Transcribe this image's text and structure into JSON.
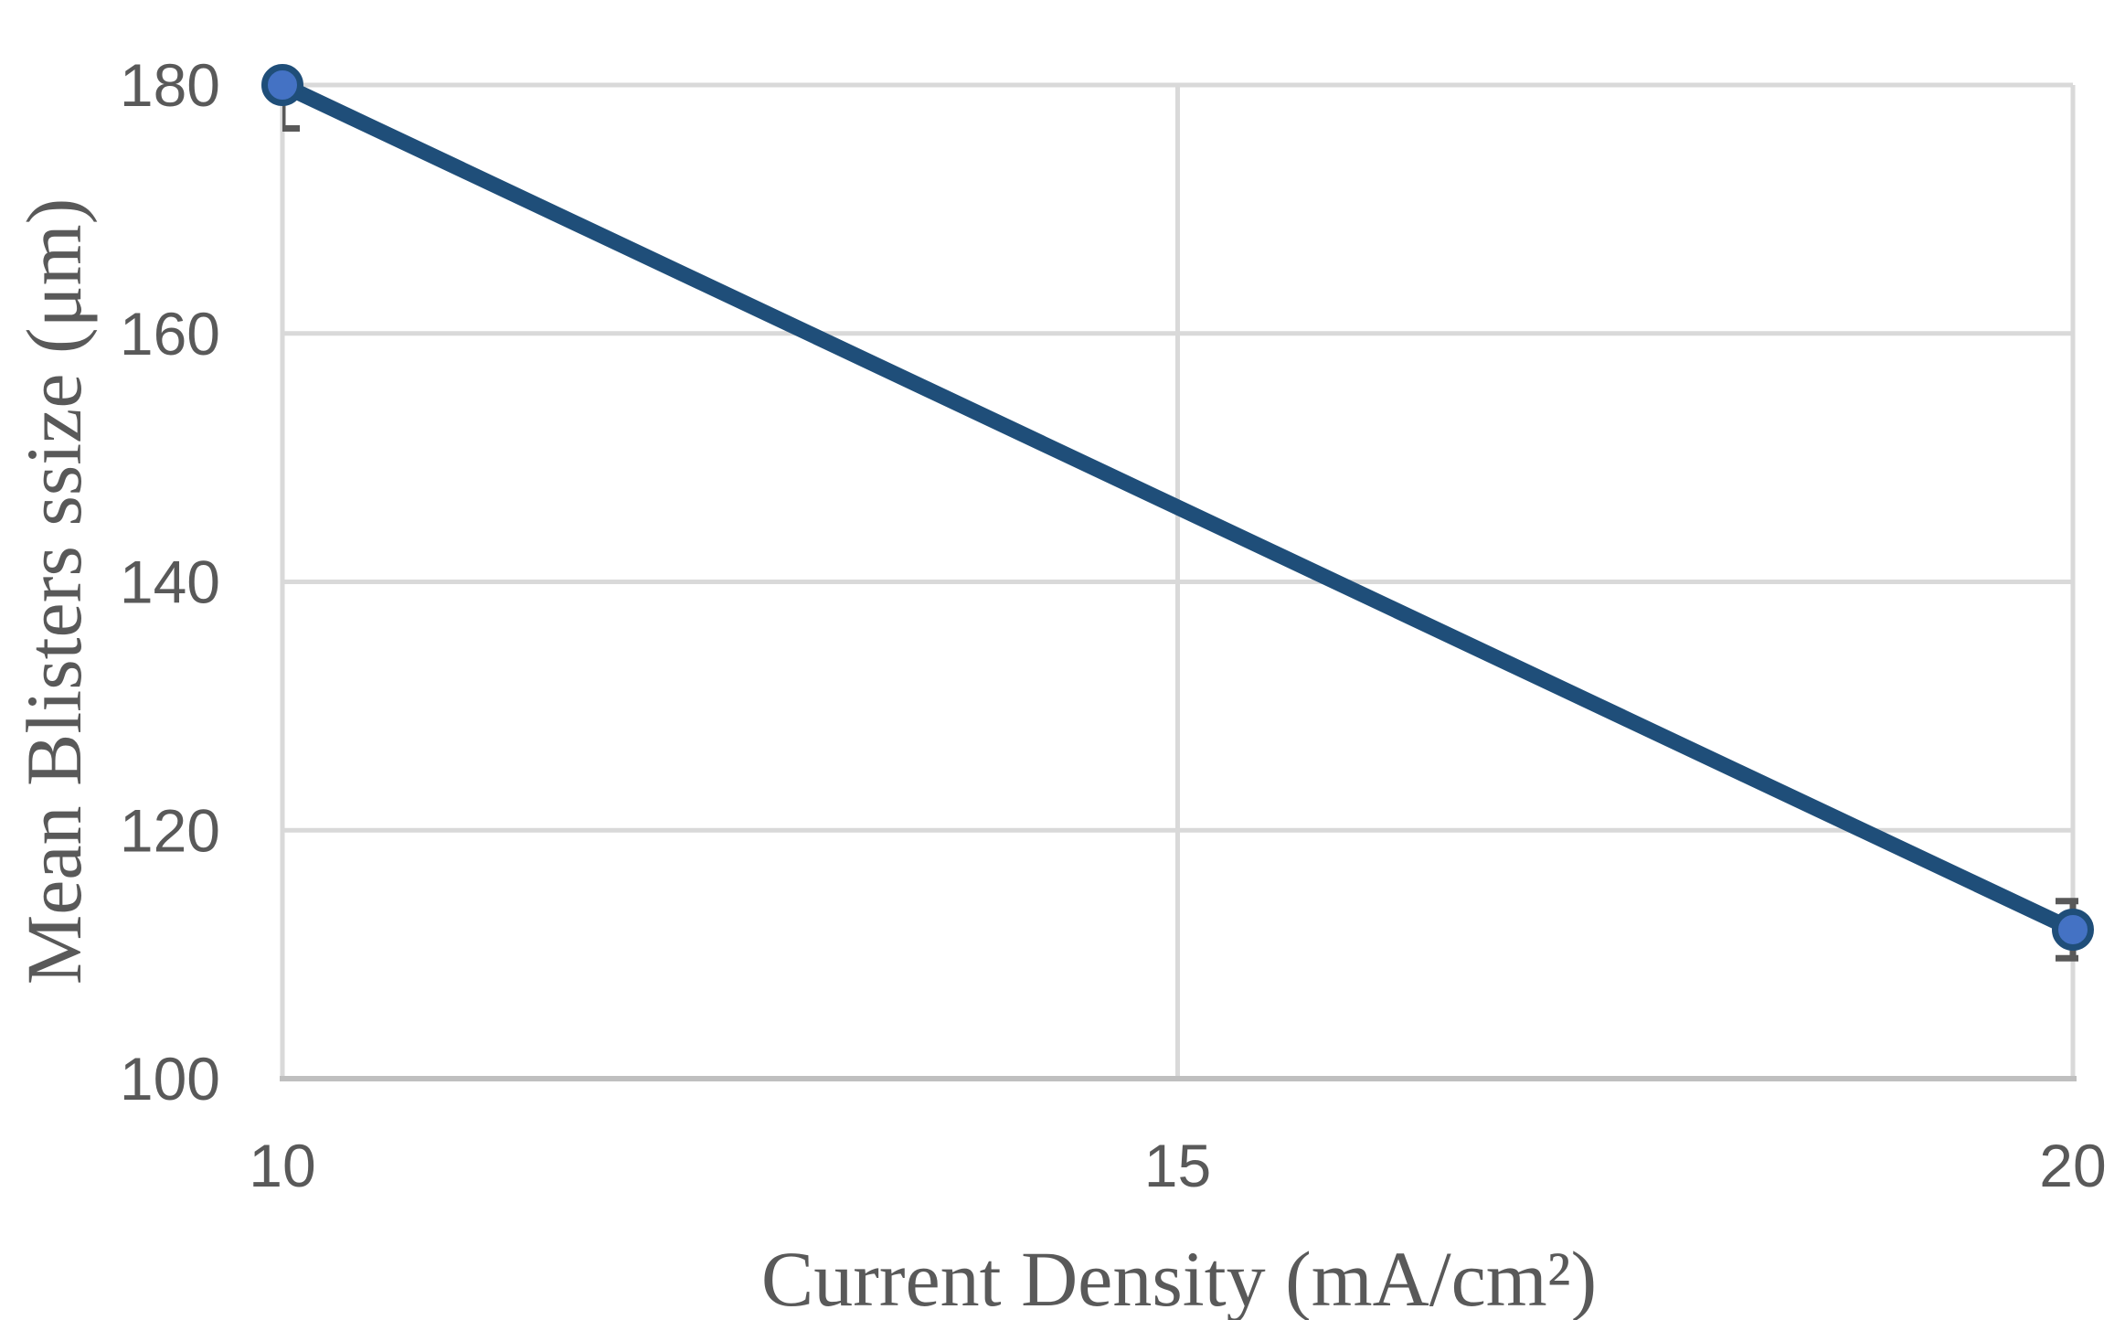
{
  "chart_data": {
    "type": "line",
    "title": "",
    "xlabel": "Current Density (mA/cm²)",
    "ylabel": "Mean Blisters ssize (μm)",
    "x": [
      10,
      20
    ],
    "y": [
      180,
      112
    ],
    "y_error": [
      3.5,
      2.3
    ],
    "xlim": [
      10,
      20
    ],
    "ylim": [
      100,
      180
    ],
    "x_ticks": [
      10,
      15,
      20
    ],
    "y_ticks": [
      100,
      120,
      140,
      160,
      180
    ],
    "grid": true,
    "legend": false,
    "marker": "circle",
    "colors": {
      "line": "#1F4E79",
      "marker_fill": "#4472C4",
      "marker_border": "#1F4E79",
      "gridline": "#D9D9D9",
      "axis_line": "#BFBFBF",
      "tick_label": "#595959",
      "axis_title": "#595959",
      "error_bar": "#595959",
      "background": "#FFFFFF"
    }
  }
}
